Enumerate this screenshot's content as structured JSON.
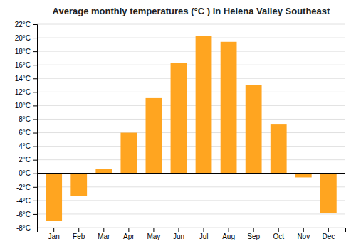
{
  "chart_data": {
    "type": "bar",
    "title": "Average monthly temperatures (°C ) in Helena Valley Southeast",
    "categories": [
      "Jan",
      "Feb",
      "Mar",
      "Apr",
      "May",
      "Jun",
      "Jul",
      "Aug",
      "Sep",
      "Oct",
      "Nov",
      "Dec"
    ],
    "values": [
      -7.0,
      -3.3,
      0.6,
      6.0,
      11.1,
      16.3,
      20.3,
      19.4,
      13.0,
      7.2,
      -0.6,
      -5.9
    ],
    "color": "#FFA520",
    "ylim": [
      -8,
      22
    ],
    "yticks": [
      {
        "value": -8,
        "label": "-8°C"
      },
      {
        "value": -6,
        "label": "-6°C"
      },
      {
        "value": -4,
        "label": "-4°C"
      },
      {
        "value": -2,
        "label": "-2°C"
      },
      {
        "value": 0,
        "label": "0°C"
      },
      {
        "value": 2,
        "label": "2°C"
      },
      {
        "value": 4,
        "label": "4°C"
      },
      {
        "value": 6,
        "label": "6°C"
      },
      {
        "value": 8,
        "label": "8°C"
      },
      {
        "value": 10,
        "label": "10°C"
      },
      {
        "value": 12,
        "label": "12°C"
      },
      {
        "value": 14,
        "label": "14°C"
      },
      {
        "value": 16,
        "label": "16°C"
      },
      {
        "value": 18,
        "label": "18°C"
      },
      {
        "value": 20,
        "label": "20°C"
      },
      {
        "value": 22,
        "label": "22°C"
      }
    ],
    "grid": true
  }
}
